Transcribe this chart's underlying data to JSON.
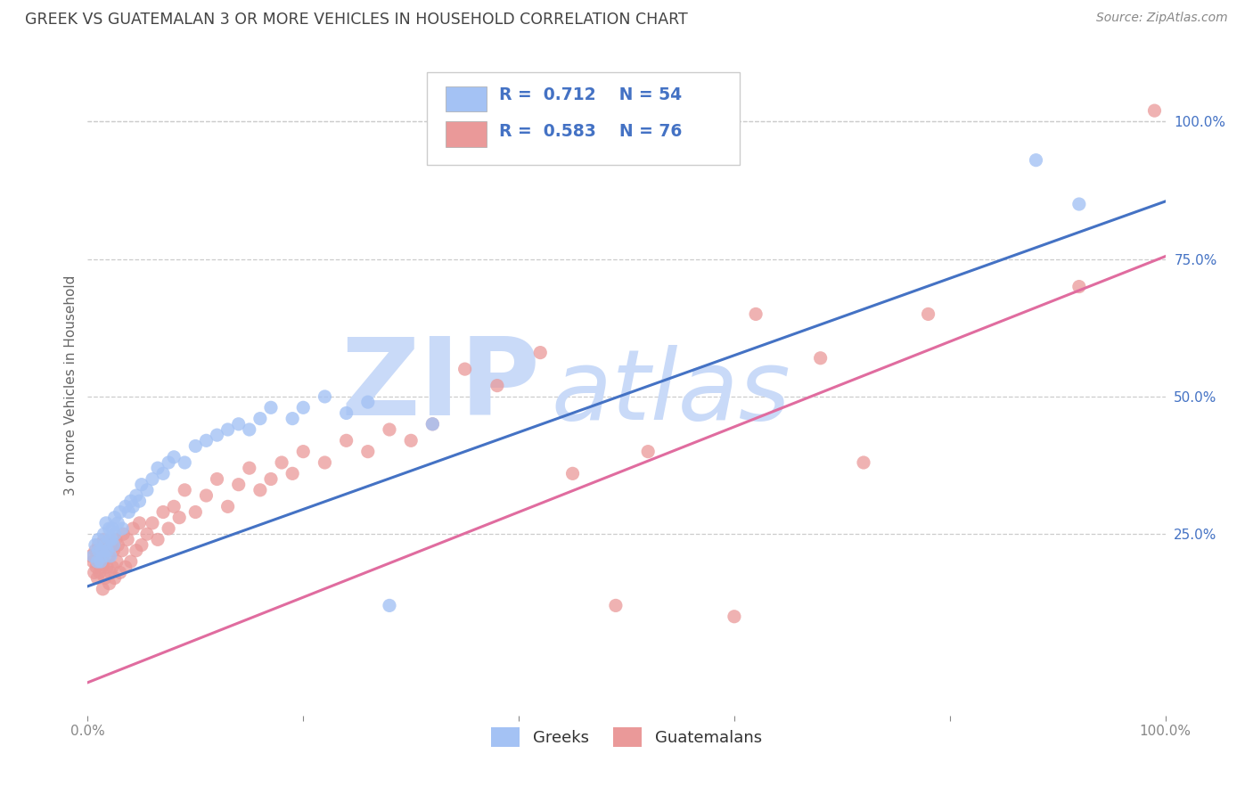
{
  "title": "GREEK VS GUATEMALAN 3 OR MORE VEHICLES IN HOUSEHOLD CORRELATION CHART",
  "source": "Source: ZipAtlas.com",
  "ylabel": "3 or more Vehicles in Household",
  "xlim": [
    0.0,
    1.0
  ],
  "ylim": [
    -0.08,
    1.12
  ],
  "greek_color": "#a4c2f4",
  "guatemalan_color": "#ea9999",
  "greek_line_color": "#4472c4",
  "guatemalan_line_color": "#e06c9f",
  "legend_text_color": "#4472c4",
  "title_color": "#444444",
  "watermark_zip": "ZIP",
  "watermark_atlas": "atlas",
  "watermark_color": "#c9daf8",
  "background_color": "#ffffff",
  "grid_color": "#cccccc",
  "greek_R": 0.712,
  "greek_N": 54,
  "guatemalan_R": 0.583,
  "guatemalan_N": 76,
  "greek_line_x0": 0.0,
  "greek_line_y0": 0.155,
  "greek_line_x1": 1.0,
  "greek_line_y1": 0.855,
  "guatemalan_line_x0": 0.0,
  "guatemalan_line_y0": -0.02,
  "guatemalan_line_x1": 1.0,
  "guatemalan_line_y1": 0.755,
  "greeks_x": [
    0.005,
    0.007,
    0.009,
    0.01,
    0.01,
    0.012,
    0.013,
    0.015,
    0.015,
    0.016,
    0.017,
    0.018,
    0.02,
    0.02,
    0.021,
    0.022,
    0.023,
    0.024,
    0.025,
    0.025,
    0.028,
    0.03,
    0.032,
    0.035,
    0.038,
    0.04,
    0.042,
    0.045,
    0.048,
    0.05,
    0.055,
    0.06,
    0.065,
    0.07,
    0.075,
    0.08,
    0.09,
    0.1,
    0.11,
    0.12,
    0.13,
    0.14,
    0.15,
    0.16,
    0.17,
    0.19,
    0.2,
    0.22,
    0.24,
    0.26,
    0.28,
    0.32,
    0.88,
    0.92
  ],
  "greeks_y": [
    0.21,
    0.23,
    0.2,
    0.22,
    0.24,
    0.2,
    0.22,
    0.21,
    0.25,
    0.23,
    0.27,
    0.22,
    0.24,
    0.26,
    0.21,
    0.24,
    0.26,
    0.23,
    0.25,
    0.28,
    0.27,
    0.29,
    0.26,
    0.3,
    0.29,
    0.31,
    0.3,
    0.32,
    0.31,
    0.34,
    0.33,
    0.35,
    0.37,
    0.36,
    0.38,
    0.39,
    0.38,
    0.41,
    0.42,
    0.43,
    0.44,
    0.45,
    0.44,
    0.46,
    0.48,
    0.46,
    0.48,
    0.5,
    0.47,
    0.49,
    0.12,
    0.45,
    0.93,
    0.85
  ],
  "guatemalans_x": [
    0.003,
    0.005,
    0.006,
    0.007,
    0.008,
    0.009,
    0.01,
    0.01,
    0.011,
    0.012,
    0.013,
    0.014,
    0.015,
    0.015,
    0.016,
    0.017,
    0.018,
    0.019,
    0.02,
    0.02,
    0.021,
    0.022,
    0.023,
    0.024,
    0.025,
    0.026,
    0.027,
    0.028,
    0.03,
    0.032,
    0.033,
    0.035,
    0.037,
    0.04,
    0.042,
    0.045,
    0.048,
    0.05,
    0.055,
    0.06,
    0.065,
    0.07,
    0.075,
    0.08,
    0.085,
    0.09,
    0.1,
    0.11,
    0.12,
    0.13,
    0.14,
    0.15,
    0.16,
    0.17,
    0.18,
    0.19,
    0.2,
    0.22,
    0.24,
    0.26,
    0.28,
    0.3,
    0.32,
    0.35,
    0.38,
    0.42,
    0.45,
    0.49,
    0.52,
    0.6,
    0.62,
    0.68,
    0.72,
    0.78,
    0.92,
    0.99
  ],
  "guatemalans_y": [
    0.21,
    0.2,
    0.18,
    0.22,
    0.19,
    0.17,
    0.23,
    0.2,
    0.18,
    0.22,
    0.19,
    0.15,
    0.24,
    0.2,
    0.17,
    0.22,
    0.19,
    0.23,
    0.16,
    0.21,
    0.18,
    0.23,
    0.19,
    0.22,
    0.17,
    0.24,
    0.2,
    0.23,
    0.18,
    0.22,
    0.25,
    0.19,
    0.24,
    0.2,
    0.26,
    0.22,
    0.27,
    0.23,
    0.25,
    0.27,
    0.24,
    0.29,
    0.26,
    0.3,
    0.28,
    0.33,
    0.29,
    0.32,
    0.35,
    0.3,
    0.34,
    0.37,
    0.33,
    0.35,
    0.38,
    0.36,
    0.4,
    0.38,
    0.42,
    0.4,
    0.44,
    0.42,
    0.45,
    0.55,
    0.52,
    0.58,
    0.36,
    0.12,
    0.4,
    0.1,
    0.65,
    0.57,
    0.38,
    0.65,
    0.7,
    1.02
  ]
}
